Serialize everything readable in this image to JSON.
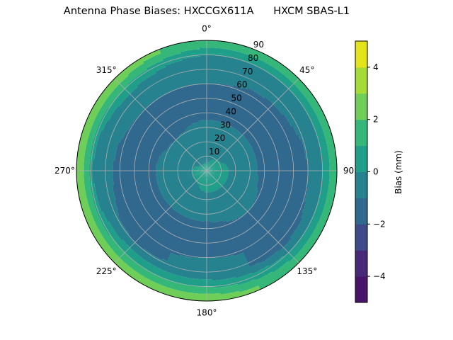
{
  "chart_data": {
    "type": "heatmap",
    "subtype": "polar-contour",
    "title": "Antenna Phase Biases: HXCCGX611A      HXCM SBAS-L1",
    "theta_ticks": [
      "0°",
      "45°",
      "90",
      "135°",
      "180°",
      "225°",
      "270°",
      "315°"
    ],
    "r_ticks": [
      "10",
      "20",
      "30",
      "40",
      "50",
      "60",
      "70",
      "80",
      "90"
    ],
    "rlim": [
      0,
      90
    ],
    "theta_zero": "top",
    "theta_direction": "clockwise",
    "grid": true,
    "azimuths": [
      0,
      45,
      90,
      135,
      180,
      225,
      270,
      315
    ],
    "radial_bin_centers": [
      2.5,
      7.5,
      12.5,
      17.5,
      22.5,
      27.5,
      32.5,
      37.5,
      42.5,
      47.5,
      52.5,
      57.5,
      62.5,
      67.5,
      72.5,
      77.5,
      82.5,
      87.5
    ],
    "values": [
      [
        0.5,
        -0.5,
        -0.5,
        -0.5,
        -0.5,
        -0.5,
        -0.5,
        -1.5,
        -1.5,
        -1.5,
        -1.5,
        -1.5,
        -0.5,
        -0.5,
        -0.5,
        -0.5,
        0.5,
        1.5
      ],
      [
        0.5,
        0.5,
        -0.5,
        -0.5,
        -0.5,
        -0.5,
        -0.5,
        -1.5,
        -1.5,
        -1.5,
        -1.5,
        -1.5,
        -1.5,
        -0.5,
        -0.5,
        -0.5,
        0.5,
        1.5
      ],
      [
        0.5,
        0.5,
        0.5,
        -0.5,
        -0.5,
        -0.5,
        -0.5,
        -1.5,
        -1.5,
        -1.5,
        -1.5,
        -1.5,
        -1.5,
        -1.5,
        -0.5,
        -0.5,
        0.5,
        1.5
      ],
      [
        0.5,
        0.5,
        0.5,
        -0.5,
        -0.5,
        -0.5,
        -0.5,
        -0.5,
        -1.5,
        -1.5,
        -1.5,
        -1.5,
        -1.5,
        -1.5,
        -1.5,
        -0.5,
        0.5,
        1.5
      ],
      [
        0.5,
        0.5,
        0.5,
        -0.5,
        -0.5,
        -0.5,
        -0.5,
        -1.5,
        -1.5,
        -1.5,
        -1.5,
        -1.5,
        -0.5,
        -0.5,
        -0.5,
        0.5,
        1.5,
        2.5
      ],
      [
        0.5,
        0.5,
        -0.5,
        -0.5,
        -0.5,
        -0.5,
        -0.5,
        -1.5,
        -1.5,
        -1.5,
        -1.5,
        -1.5,
        -1.5,
        -1.5,
        -0.5,
        0.5,
        1.5,
        2.5
      ],
      [
        0.5,
        0.5,
        -0.5,
        -0.5,
        -0.5,
        -0.5,
        -0.5,
        -1.5,
        -1.5,
        -1.5,
        -1.5,
        -1.5,
        -1.5,
        -0.5,
        -0.5,
        -0.5,
        1.5,
        2.5
      ],
      [
        0.5,
        -0.5,
        -0.5,
        -0.5,
        -0.5,
        -0.5,
        -1.5,
        -1.5,
        -1.5,
        -1.5,
        -1.5,
        -1.5,
        -0.5,
        -0.5,
        -0.5,
        0.5,
        1.5,
        2.5
      ]
    ],
    "colorbar": {
      "label": "Bias (mm)",
      "levels": [
        -5,
        -4,
        -3,
        -2,
        -1,
        0,
        1,
        2,
        3,
        4,
        5
      ],
      "ticks": [
        "−4",
        "−2",
        "0",
        "2",
        "4"
      ],
      "tick_values": [
        -4,
        -2,
        0,
        2,
        4
      ],
      "colormap": "viridis",
      "colors": [
        "#471467",
        "#482878",
        "#3e4a89",
        "#31688e",
        "#26828e",
        "#1f9e89",
        "#35b779",
        "#6ece58",
        "#a5db36",
        "#e3e419"
      ]
    }
  }
}
